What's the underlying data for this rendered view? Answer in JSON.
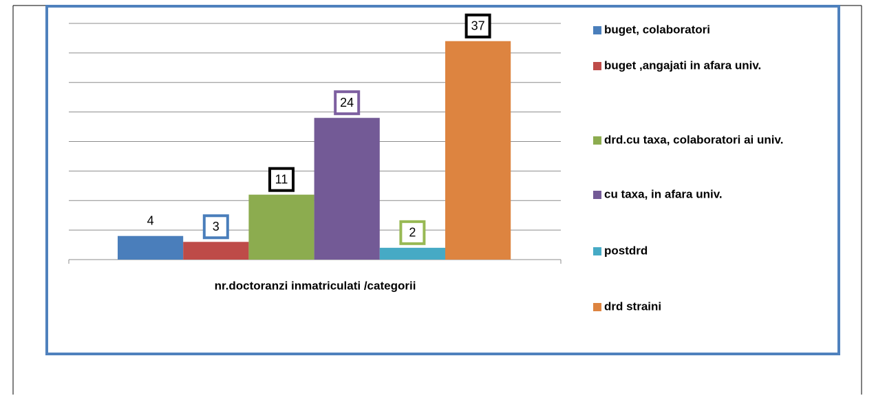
{
  "chart_data": {
    "type": "bar",
    "categories": [
      "nr.doctoranzi inmatriculati /categorii"
    ],
    "series": [
      {
        "name": "buget, colaboratori",
        "color": "#4a7ebb",
        "values": [
          4
        ],
        "label_border": null
      },
      {
        "name": "buget ,angajati in afara univ.",
        "color": "#be4b48",
        "values": [
          3
        ],
        "label_border": "#4a7ebb"
      },
      {
        "name": "drd.cu taxa, colaboratori ai univ.",
        "color": "#8cac4f",
        "values": [
          11
        ],
        "label_border": "#000000"
      },
      {
        "name": "cu taxa, in afara univ.",
        "color": "#735a96",
        "values": [
          24
        ],
        "label_border": "#7d5fa0"
      },
      {
        "name": "postdrd",
        "color": "#46aac5",
        "values": [
          2
        ],
        "label_border": "#98b954"
      },
      {
        "name": "drd straini",
        "color": "#dd8440",
        "values": [
          37
        ],
        "label_border": "#000000"
      }
    ],
    "ylim": [
      0,
      40
    ],
    "yticks": [
      0,
      5,
      10,
      15,
      20,
      25,
      30,
      35,
      40
    ],
    "grid": true,
    "legend": "right"
  }
}
